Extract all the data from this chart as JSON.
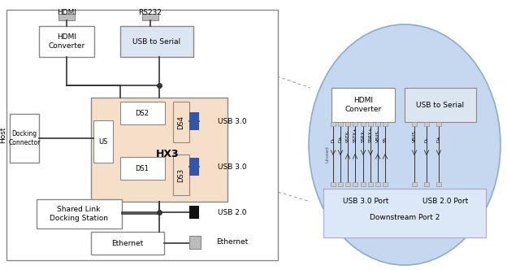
{
  "bg_color": "#ffffff",
  "hx3_fill": "#f5dfc8",
  "usb_serial_fill": "#dce6f1",
  "hdmi_conv_fill": "#ffffff",
  "blue_fill": "#3355aa",
  "black_fill": "#111111",
  "gray_fill": "#aaaaaa",
  "circle_fill": "#c5d8f0",
  "circle_border": "#8aaccf",
  "hdmi_label": "HDMI",
  "rs232_label": "RS232",
  "host_label": "Host",
  "hx3_label": "HX3",
  "us_label": "US",
  "ds1_label": "DS1",
  "ds2_label": "DS2",
  "ds3_label": "DS3",
  "ds4_label": "DS4",
  "hdmi_conv_label": "HDMI\nConverter",
  "usb_serial_label": "USB to Serial",
  "shared_link_label": "Shared Link\nDocking Station",
  "ethernet_label": "Ethernet",
  "usb30_label": "USB 3.0",
  "usb20_label": "USB 2.0",
  "ethernet_out_label": "Ethernet",
  "downstream_label": "Downstream Port 2",
  "usb30port_label": "USB 3.0 Port",
  "usb20port_label": "USB 2.0 Port",
  "hdmi_conv2_label": "HDMI\nConverter",
  "usb_serial2_label": "USB to Serial",
  "unused_label": "Unused",
  "signal_labels_30": [
    "D-",
    "D+",
    "SSTX-",
    "SSTX+",
    "SSRX-",
    "SSRX+",
    "VBUS",
    "SS"
  ],
  "signal_labels_20": [
    "VBUS",
    "D-",
    "D+"
  ]
}
